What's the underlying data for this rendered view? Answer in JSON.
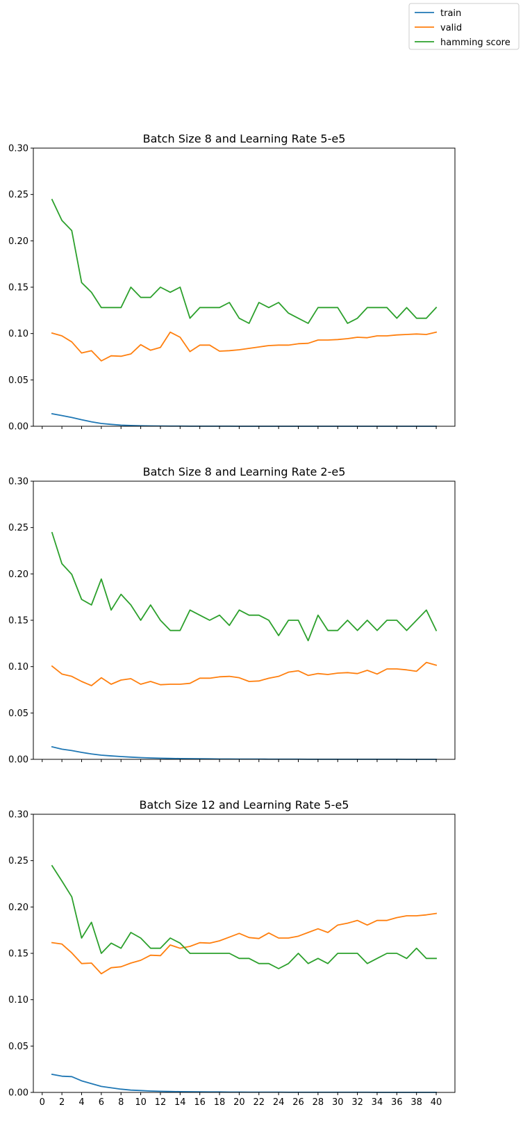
{
  "legend": {
    "placement": "top-right",
    "entries": [
      {
        "label": "train",
        "color": "#1f77b4"
      },
      {
        "label": "valid",
        "color": "#ff7f0e"
      },
      {
        "label": "hamming score",
        "color": "#2ca02c"
      }
    ]
  },
  "chart_data": [
    {
      "type": "line",
      "title": "Batch Size 8 and Learning Rate 5-e5",
      "xlabel": "",
      "ylabel": "",
      "xlim": [
        -0.9,
        41.9
      ],
      "ylim": [
        0,
        0.3
      ],
      "yticks": [
        0,
        0.05,
        0.1,
        0.15,
        0.2,
        0.25,
        0.3
      ],
      "ytick_labels": [
        "0.00",
        "0.05",
        "0.10",
        "0.15",
        "0.20",
        "0.25",
        "0.30"
      ],
      "xticks": [
        0,
        2,
        4,
        6,
        8,
        10,
        12,
        14,
        16,
        18,
        20,
        22,
        24,
        26,
        28,
        30,
        32,
        34,
        36,
        38,
        40
      ],
      "show_xtick_labels": false,
      "grid": false,
      "x": [
        1,
        2,
        3,
        4,
        5,
        6,
        7,
        8,
        9,
        10,
        11,
        12,
        13,
        14,
        15,
        16,
        17,
        18,
        19,
        20,
        21,
        22,
        23,
        24,
        25,
        26,
        27,
        28,
        29,
        30,
        31,
        32,
        33,
        34,
        35,
        36,
        37,
        38,
        39,
        40
      ],
      "series": [
        {
          "name": "train",
          "color": "#1f77b4",
          "values": [
            0.0135,
            0.0115,
            0.0095,
            0.007,
            0.0048,
            0.003,
            0.002,
            0.0012,
            0.0008,
            0.0005,
            0.0004,
            0.0003,
            0.0002,
            0.0002,
            0.0001,
            0.0001,
            0.0001,
            0.0001,
            0.0001,
            0,
            0,
            0,
            0,
            0,
            0,
            0,
            0,
            0,
            0,
            0,
            0,
            0,
            0,
            0,
            0,
            0,
            0,
            0,
            0,
            0
          ]
        },
        {
          "name": "valid",
          "color": "#ff7f0e",
          "values": [
            0.1005,
            0.0975,
            0.091,
            0.079,
            0.0815,
            0.0705,
            0.076,
            0.0755,
            0.078,
            0.088,
            0.082,
            0.085,
            0.1015,
            0.096,
            0.0805,
            0.0875,
            0.0875,
            0.081,
            0.0815,
            0.0825,
            0.084,
            0.0855,
            0.087,
            0.0875,
            0.0875,
            0.089,
            0.0895,
            0.093,
            0.093,
            0.0935,
            0.0945,
            0.096,
            0.0955,
            0.0975,
            0.0975,
            0.0985,
            0.099,
            0.0995,
            0.099,
            0.1015
          ]
        },
        {
          "name": "hamming score",
          "color": "#2ca02c",
          "values": [
            0.2445,
            0.222,
            0.211,
            0.155,
            0.1445,
            0.128,
            0.128,
            0.128,
            0.15,
            0.139,
            0.139,
            0.15,
            0.1445,
            0.15,
            0.1165,
            0.128,
            0.128,
            0.128,
            0.1335,
            0.1165,
            0.111,
            0.1335,
            0.128,
            0.1335,
            0.122,
            0.1165,
            0.111,
            0.128,
            0.128,
            0.128,
            0.111,
            0.1165,
            0.128,
            0.128,
            0.128,
            0.1165,
            0.128,
            0.1165,
            0.1165,
            0.128
          ]
        }
      ]
    },
    {
      "type": "line",
      "title": "Batch Size 8 and Learning Rate 2-e5",
      "xlabel": "",
      "ylabel": "",
      "xlim": [
        -0.9,
        41.9
      ],
      "ylim": [
        0,
        0.3
      ],
      "yticks": [
        0,
        0.05,
        0.1,
        0.15,
        0.2,
        0.25,
        0.3
      ],
      "ytick_labels": [
        "0.00",
        "0.05",
        "0.10",
        "0.15",
        "0.20",
        "0.25",
        "0.30"
      ],
      "xticks": [
        0,
        2,
        4,
        6,
        8,
        10,
        12,
        14,
        16,
        18,
        20,
        22,
        24,
        26,
        28,
        30,
        32,
        34,
        36,
        38,
        40
      ],
      "show_xtick_labels": false,
      "grid": false,
      "x": [
        1,
        2,
        3,
        4,
        5,
        6,
        7,
        8,
        9,
        10,
        11,
        12,
        13,
        14,
        15,
        16,
        17,
        18,
        19,
        20,
        21,
        22,
        23,
        24,
        25,
        26,
        27,
        28,
        29,
        30,
        31,
        32,
        33,
        34,
        35,
        36,
        37,
        38,
        39,
        40
      ],
      "series": [
        {
          "name": "train",
          "color": "#1f77b4",
          "values": [
            0.0135,
            0.011,
            0.0095,
            0.0075,
            0.0058,
            0.0045,
            0.0037,
            0.003,
            0.0024,
            0.0019,
            0.0015,
            0.0012,
            0.001,
            0.0008,
            0.0007,
            0.0006,
            0.0005,
            0.0004,
            0.0004,
            0.0003,
            0.0003,
            0.0003,
            0.0002,
            0.0002,
            0.0002,
            0.0002,
            0.0001,
            0.0001,
            0.0001,
            0.0001,
            0.0001,
            0.0001,
            0.0001,
            0.0001,
            0.0001,
            0.0001,
            0,
            0,
            0,
            0
          ]
        },
        {
          "name": "valid",
          "color": "#ff7f0e",
          "values": [
            0.1005,
            0.092,
            0.0895,
            0.084,
            0.0795,
            0.088,
            0.081,
            0.0855,
            0.087,
            0.081,
            0.084,
            0.0805,
            0.081,
            0.081,
            0.082,
            0.0875,
            0.0875,
            0.089,
            0.0895,
            0.088,
            0.084,
            0.0845,
            0.0875,
            0.0895,
            0.094,
            0.0955,
            0.0905,
            0.0925,
            0.0915,
            0.093,
            0.0935,
            0.0925,
            0.096,
            0.092,
            0.0975,
            0.0975,
            0.0965,
            0.095,
            0.1045,
            0.1015
          ]
        },
        {
          "name": "hamming score",
          "color": "#2ca02c",
          "values": [
            0.2445,
            0.211,
            0.1995,
            0.1725,
            0.1665,
            0.1945,
            0.161,
            0.178,
            0.1665,
            0.15,
            0.1665,
            0.15,
            0.139,
            0.139,
            0.161,
            0.1555,
            0.15,
            0.1555,
            0.1445,
            0.161,
            0.1555,
            0.1555,
            0.15,
            0.1335,
            0.15,
            0.15,
            0.128,
            0.1555,
            0.139,
            0.139,
            0.15,
            0.139,
            0.15,
            0.139,
            0.15,
            0.15,
            0.139,
            0.15,
            0.161,
            0.139
          ]
        }
      ]
    },
    {
      "type": "line",
      "title": "Batch Size 12 and Learning Rate 5-e5",
      "xlabel": "",
      "ylabel": "",
      "xlim": [
        -0.9,
        41.9
      ],
      "ylim": [
        0,
        0.3
      ],
      "yticks": [
        0,
        0.05,
        0.1,
        0.15,
        0.2,
        0.25,
        0.3
      ],
      "ytick_labels": [
        "0.00",
        "0.05",
        "0.10",
        "0.15",
        "0.20",
        "0.25",
        "0.30"
      ],
      "xticks": [
        0,
        2,
        4,
        6,
        8,
        10,
        12,
        14,
        16,
        18,
        20,
        22,
        24,
        26,
        28,
        30,
        32,
        34,
        36,
        38,
        40
      ],
      "xtick_labels": [
        "0",
        "2",
        "4",
        "6",
        "8",
        "10",
        "12",
        "14",
        "16",
        "18",
        "20",
        "22",
        "24",
        "26",
        "28",
        "30",
        "32",
        "34",
        "36",
        "38",
        "40"
      ],
      "show_xtick_labels": true,
      "grid": false,
      "x": [
        1,
        2,
        3,
        4,
        5,
        6,
        7,
        8,
        9,
        10,
        11,
        12,
        13,
        14,
        15,
        16,
        17,
        18,
        19,
        20,
        21,
        22,
        23,
        24,
        25,
        26,
        27,
        28,
        29,
        30,
        31,
        32,
        33,
        34,
        35,
        36,
        37,
        38,
        39,
        40
      ],
      "series": [
        {
          "name": "train",
          "color": "#1f77b4",
          "values": [
            0.0195,
            0.0175,
            0.017,
            0.0125,
            0.0095,
            0.0065,
            0.005,
            0.0035,
            0.0025,
            0.002,
            0.0015,
            0.0012,
            0.001,
            0.0008,
            0.0007,
            0.0006,
            0.0005,
            0.0005,
            0.0004,
            0.0004,
            0.0003,
            0.0003,
            0.0003,
            0.0003,
            0.0002,
            0.0002,
            0.0002,
            0.0002,
            0.0002,
            0.0002,
            0.0002,
            0.0002,
            0.0002,
            0.0001,
            0.0001,
            0.0001,
            0.0001,
            0.0001,
            0.0001,
            0.0001
          ]
        },
        {
          "name": "valid",
          "color": "#ff7f0e",
          "values": [
            0.1615,
            0.16,
            0.1505,
            0.139,
            0.1395,
            0.128,
            0.1345,
            0.1355,
            0.1395,
            0.1425,
            0.148,
            0.1475,
            0.159,
            0.1555,
            0.1575,
            0.1615,
            0.161,
            0.1635,
            0.1675,
            0.1715,
            0.167,
            0.166,
            0.172,
            0.1665,
            0.1665,
            0.1685,
            0.1725,
            0.1765,
            0.1725,
            0.1805,
            0.1825,
            0.1855,
            0.1805,
            0.1855,
            0.1855,
            0.1885,
            0.1905,
            0.1905,
            0.1915,
            0.193
          ]
        },
        {
          "name": "hamming score",
          "color": "#2ca02c",
          "values": [
            0.2445,
            0.228,
            0.211,
            0.1665,
            0.1835,
            0.15,
            0.161,
            0.1555,
            0.1725,
            0.1665,
            0.1555,
            0.1555,
            0.1665,
            0.161,
            0.15,
            0.15,
            0.15,
            0.15,
            0.15,
            0.1445,
            0.1445,
            0.139,
            0.139,
            0.1335,
            0.139,
            0.15,
            0.139,
            0.1445,
            0.139,
            0.15,
            0.15,
            0.15,
            0.139,
            0.1445,
            0.15,
            0.15,
            0.1445,
            0.1555,
            0.1445,
            0.1445
          ]
        }
      ]
    }
  ]
}
